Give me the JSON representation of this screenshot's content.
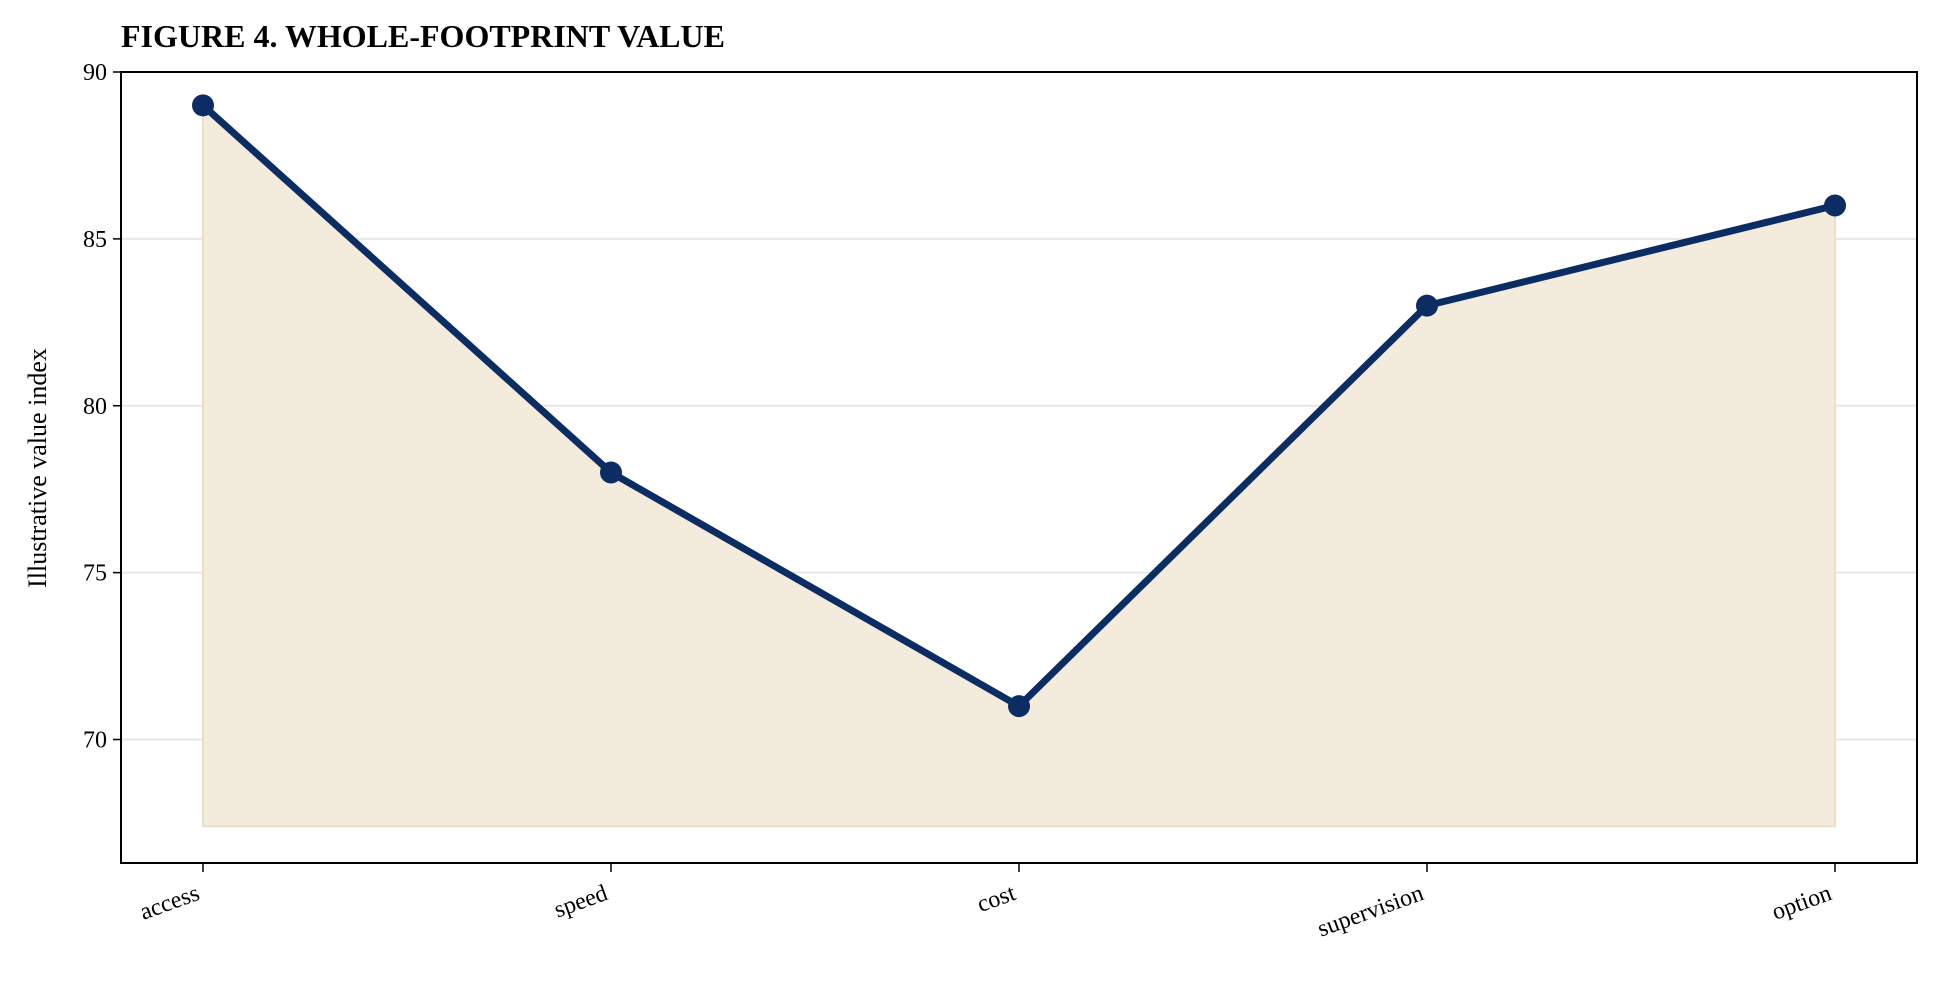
{
  "chart_data": {
    "type": "area",
    "title": "FIGURE 4. WHOLE-FOOTPRINT VALUE",
    "xlabel": "",
    "ylabel": "Illustrative value index",
    "categories": [
      "access",
      "speed",
      "cost",
      "supervision",
      "option"
    ],
    "series": [
      {
        "values": [
          89,
          78,
          71,
          83,
          86
        ]
      }
    ],
    "fill_baseline": 67.4,
    "ylim": [
      66.3,
      90
    ],
    "yticks": [
      "70",
      "75",
      "80",
      "85",
      "90"
    ],
    "grid": "horizontal",
    "colors": {
      "line": "#0b2d64",
      "fill": "#f3ebdb",
      "fill_edge": "#eadfc5",
      "grid": "#e6e6e6",
      "axis": "#000000"
    }
  }
}
